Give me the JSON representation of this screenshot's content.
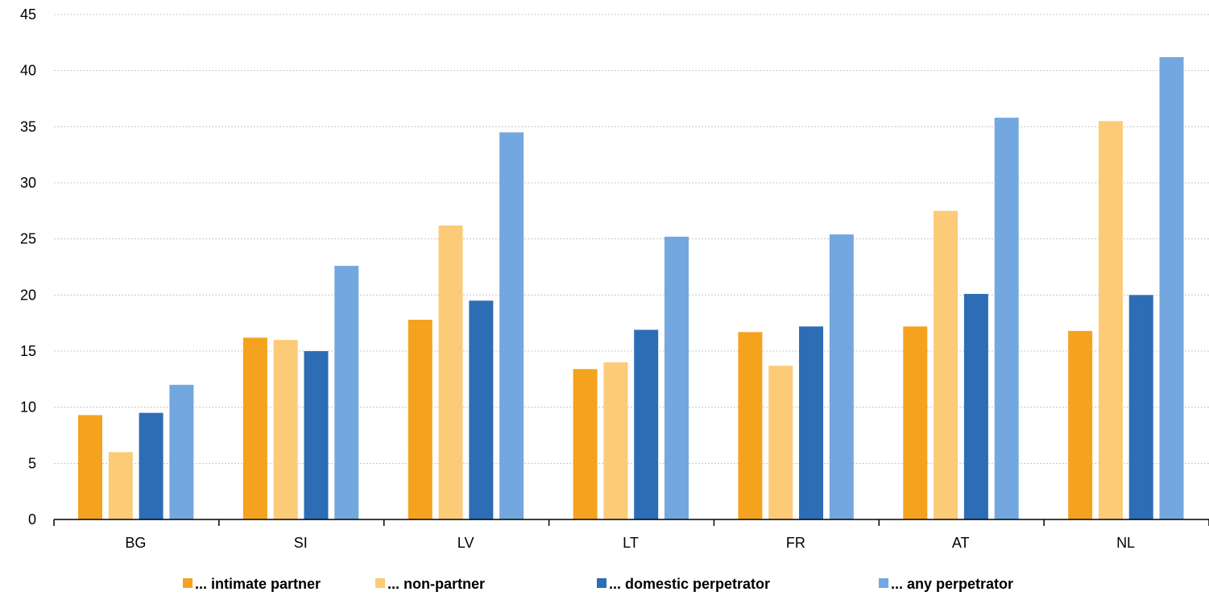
{
  "chart_data": {
    "type": "bar",
    "title": "",
    "xlabel": "",
    "ylabel": "",
    "categories": [
      "BG",
      "SI",
      "LV",
      "LT",
      "FR",
      "AT",
      "NL"
    ],
    "ylim": [
      0,
      45
    ],
    "yticks": [
      0,
      5,
      10,
      15,
      20,
      25,
      30,
      35,
      40,
      45
    ],
    "grid": true,
    "legend_position": "bottom",
    "series": [
      {
        "name": "... intimate partner",
        "color": "#F5A21E",
        "values": [
          9.3,
          16.2,
          17.8,
          13.4,
          16.7,
          17.2,
          16.8
        ]
      },
      {
        "name": "... non-partner",
        "color": "#FCCB78",
        "values": [
          6.0,
          16.0,
          26.2,
          14.0,
          13.7,
          27.5,
          35.5
        ]
      },
      {
        "name": "... domestic perpetrator",
        "color": "#2D6DB5",
        "values": [
          9.5,
          15.0,
          19.5,
          16.9,
          17.2,
          20.1,
          20.0
        ]
      },
      {
        "name": "... any perpetrator",
        "color": "#73A7DF",
        "values": [
          12.0,
          22.6,
          34.5,
          25.2,
          25.4,
          35.8,
          41.2
        ]
      }
    ]
  }
}
